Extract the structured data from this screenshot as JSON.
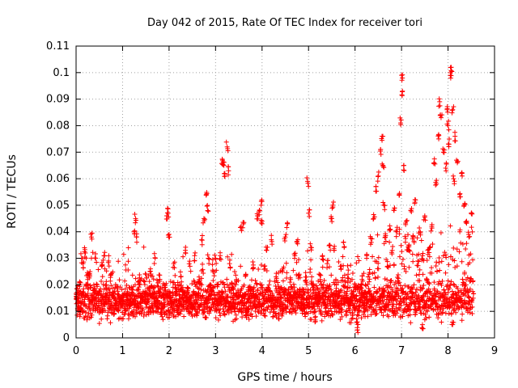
{
  "chart_data": {
    "type": "scatter",
    "title": "Day 042 of 2015, Rate Of TEC Index for receiver tori",
    "xlabel": "GPS time / hours",
    "ylabel": "ROTI / TECUs",
    "xlim": [
      0,
      9
    ],
    "ylim": [
      0,
      0.11
    ],
    "x_ticks": [
      "0",
      "1",
      "2",
      "3",
      "4",
      "5",
      "6",
      "7",
      "8",
      "9"
    ],
    "y_ticks": [
      "0",
      "0.01",
      "0.02",
      "0.03",
      "0.04",
      "0.05",
      "0.06",
      "0.07",
      "0.08",
      "0.09",
      "0.1",
      "0.11"
    ],
    "grid": true,
    "marker": "plus",
    "series": [
      {
        "name": "ROTI",
        "color": "#ff0000",
        "points": [
          [
            0.02,
            0.015
          ],
          [
            0.05,
            0.012
          ],
          [
            0.08,
            0.02
          ],
          [
            0.12,
            0.03
          ],
          [
            0.15,
            0.028
          ],
          [
            0.2,
            0.032
          ],
          [
            0.25,
            0.022
          ],
          [
            0.3,
            0.025
          ],
          [
            0.33,
            0.038
          ],
          [
            0.38,
            0.018
          ],
          [
            0.42,
            0.03
          ],
          [
            0.48,
            0.016
          ],
          [
            0.55,
            0.027
          ],
          [
            0.6,
            0.031
          ],
          [
            0.65,
            0.02
          ],
          [
            0.7,
            0.029
          ],
          [
            0.75,
            0.024
          ],
          [
            0.8,
            0.017
          ],
          [
            0.85,
            0.013
          ],
          [
            0.92,
            0.011
          ],
          [
            1.0,
            0.014
          ],
          [
            1.05,
            0.009
          ],
          [
            1.1,
            0.016
          ],
          [
            1.15,
            0.012
          ],
          [
            1.2,
            0.018
          ],
          [
            1.25,
            0.04
          ],
          [
            1.28,
            0.045
          ],
          [
            1.3,
            0.038
          ],
          [
            1.35,
            0.021
          ],
          [
            1.4,
            0.015
          ],
          [
            1.5,
            0.024
          ],
          [
            1.55,
            0.01
          ],
          [
            1.6,
            0.026
          ],
          [
            1.65,
            0.017
          ],
          [
            1.7,
            0.03
          ],
          [
            1.75,
            0.012
          ],
          [
            1.8,
            0.022
          ],
          [
            1.85,
            0.008
          ],
          [
            1.9,
            0.019
          ],
          [
            1.95,
            0.046
          ],
          [
            1.98,
            0.047
          ],
          [
            2.0,
            0.039
          ],
          [
            2.05,
            0.013
          ],
          [
            2.1,
            0.028
          ],
          [
            2.15,
            0.016
          ],
          [
            2.2,
            0.011
          ],
          [
            2.25,
            0.023
          ],
          [
            2.3,
            0.015
          ],
          [
            2.35,
            0.033
          ],
          [
            2.4,
            0.019
          ],
          [
            2.45,
            0.027
          ],
          [
            2.5,
            0.012
          ],
          [
            2.55,
            0.031
          ],
          [
            2.6,
            0.016
          ],
          [
            2.65,
            0.022
          ],
          [
            2.7,
            0.037
          ],
          [
            2.75,
            0.045
          ],
          [
            2.8,
            0.054
          ],
          [
            2.83,
            0.048
          ],
          [
            2.85,
            0.03
          ],
          [
            2.9,
            0.018
          ],
          [
            2.95,
            0.025
          ],
          [
            3.0,
            0.03
          ],
          [
            3.05,
            0.02
          ],
          [
            3.1,
            0.031
          ],
          [
            3.15,
            0.067
          ],
          [
            3.18,
            0.065
          ],
          [
            3.2,
            0.062
          ],
          [
            3.25,
            0.072
          ],
          [
            3.28,
            0.063
          ],
          [
            3.3,
            0.028
          ],
          [
            3.35,
            0.019
          ],
          [
            3.4,
            0.013
          ],
          [
            3.45,
            0.022
          ],
          [
            3.5,
            0.016
          ],
          [
            3.55,
            0.042
          ],
          [
            3.6,
            0.043
          ],
          [
            3.65,
            0.024
          ],
          [
            3.7,
            0.011
          ],
          [
            3.75,
            0.018
          ],
          [
            3.8,
            0.026
          ],
          [
            3.85,
            0.015
          ],
          [
            3.9,
            0.046
          ],
          [
            3.95,
            0.048
          ],
          [
            3.98,
            0.05
          ],
          [
            4.0,
            0.044
          ],
          [
            4.05,
            0.027
          ],
          [
            4.1,
            0.033
          ],
          [
            4.15,
            0.02
          ],
          [
            4.2,
            0.037
          ],
          [
            4.25,
            0.012
          ],
          [
            4.3,
            0.023
          ],
          [
            4.35,
            0.009
          ],
          [
            4.4,
            0.017
          ],
          [
            4.45,
            0.026
          ],
          [
            4.5,
            0.038
          ],
          [
            4.55,
            0.043
          ],
          [
            4.6,
            0.021
          ],
          [
            4.65,
            0.014
          ],
          [
            4.7,
            0.03
          ],
          [
            4.75,
            0.036
          ],
          [
            4.8,
            0.024
          ],
          [
            4.85,
            0.016
          ],
          [
            4.9,
            0.011
          ],
          [
            4.95,
            0.021
          ],
          [
            4.98,
            0.059
          ],
          [
            5.0,
            0.047
          ],
          [
            5.05,
            0.034
          ],
          [
            5.1,
            0.019
          ],
          [
            5.15,
            0.008
          ],
          [
            5.2,
            0.013
          ],
          [
            5.25,
            0.022
          ],
          [
            5.3,
            0.031
          ],
          [
            5.35,
            0.017
          ],
          [
            5.4,
            0.028
          ],
          [
            5.45,
            0.035
          ],
          [
            5.5,
            0.045
          ],
          [
            5.52,
            0.05
          ],
          [
            5.55,
            0.033
          ],
          [
            5.6,
            0.02
          ],
          [
            5.65,
            0.011
          ],
          [
            5.7,
            0.026
          ],
          [
            5.75,
            0.036
          ],
          [
            5.8,
            0.016
          ],
          [
            5.85,
            0.024
          ],
          [
            5.9,
            0.013
          ],
          [
            5.95,
            0.009
          ],
          [
            6.0,
            0.019
          ],
          [
            6.05,
            0.006
          ],
          [
            6.1,
            0.014
          ],
          [
            6.15,
            0.022
          ],
          [
            6.2,
            0.017
          ],
          [
            6.25,
            0.03
          ],
          [
            6.3,
            0.024
          ],
          [
            6.35,
            0.036
          ],
          [
            6.4,
            0.045
          ],
          [
            6.45,
            0.057
          ],
          [
            6.5,
            0.061
          ],
          [
            6.55,
            0.071
          ],
          [
            6.58,
            0.076
          ],
          [
            6.6,
            0.065
          ],
          [
            6.62,
            0.05
          ],
          [
            6.65,
            0.038
          ],
          [
            6.7,
            0.027
          ],
          [
            6.75,
            0.041
          ],
          [
            6.8,
            0.033
          ],
          [
            6.85,
            0.049
          ],
          [
            6.9,
            0.04
          ],
          [
            6.95,
            0.054
          ],
          [
            6.98,
            0.081
          ],
          [
            7.0,
            0.099
          ],
          [
            7.02,
            0.093
          ],
          [
            7.05,
            0.065
          ],
          [
            7.1,
            0.044
          ],
          [
            7.15,
            0.033
          ],
          [
            7.2,
            0.048
          ],
          [
            7.25,
            0.038
          ],
          [
            7.3,
            0.052
          ],
          [
            7.35,
            0.029
          ],
          [
            7.4,
            0.04
          ],
          [
            7.45,
            0.031
          ],
          [
            7.5,
            0.046
          ],
          [
            7.55,
            0.022
          ],
          [
            7.6,
            0.034
          ],
          [
            7.65,
            0.042
          ],
          [
            7.7,
            0.066
          ],
          [
            7.75,
            0.058
          ],
          [
            7.8,
            0.075
          ],
          [
            7.82,
            0.089
          ],
          [
            7.85,
            0.083
          ],
          [
            7.9,
            0.07
          ],
          [
            7.95,
            0.064
          ],
          [
            7.98,
            0.086
          ],
          [
            8.0,
            0.08
          ],
          [
            8.02,
            0.073
          ],
          [
            8.05,
            0.099
          ],
          [
            8.07,
            0.102
          ],
          [
            8.1,
            0.086
          ],
          [
            8.12,
            0.06
          ],
          [
            8.15,
            0.076
          ],
          [
            8.2,
            0.066
          ],
          [
            8.25,
            0.054
          ],
          [
            8.3,
            0.062
          ],
          [
            8.35,
            0.05
          ],
          [
            8.4,
            0.044
          ],
          [
            8.45,
            0.038
          ],
          [
            8.5,
            0.047
          ],
          [
            8.1,
            0.005
          ],
          [
            7.45,
            0.005
          ],
          [
            6.05,
            0.003
          ]
        ],
        "baseline_band": {
          "x_range": [
            0,
            8.55
          ],
          "y_center": 0.014,
          "y_spread": 0.006
        }
      }
    ]
  }
}
